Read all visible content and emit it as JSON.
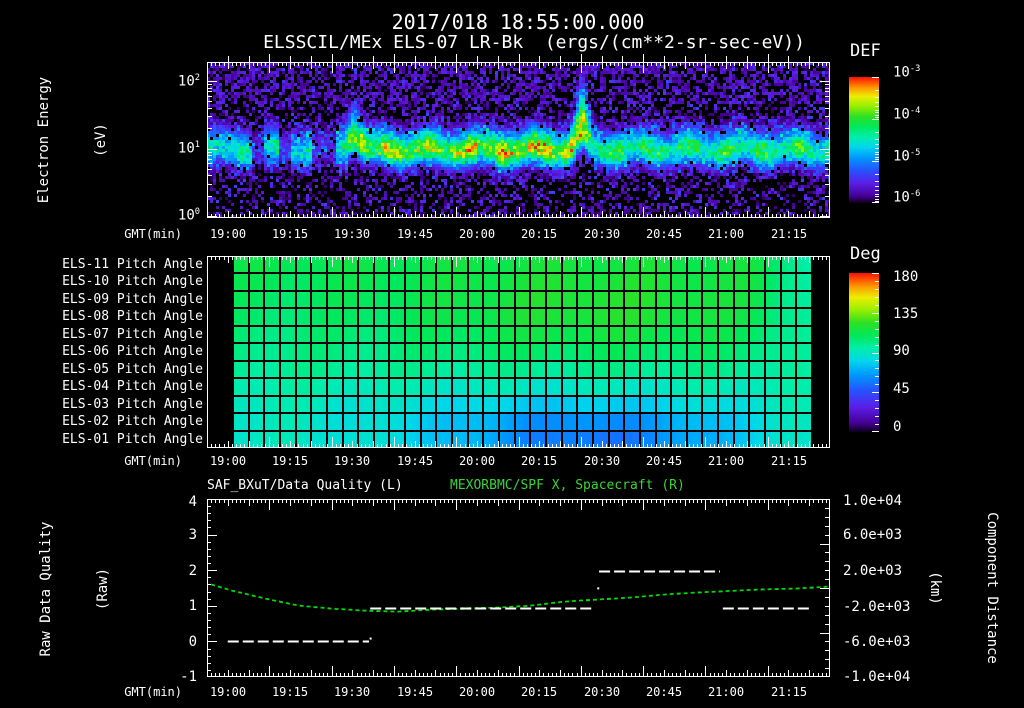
{
  "header": {
    "datetime": "2017/018 18:55:00.000",
    "instrument_title": "ELSSCIL/MEx ELS-07 LR-Bk  (ergs/(cm**2-sr-sec-eV))"
  },
  "time_axis": {
    "label": "GMT(min)",
    "start": "18:55",
    "end": "21:25",
    "range_min": 150,
    "first_tick_offset_min": 5,
    "tick_interval_min": 15,
    "ticks": [
      "19:00",
      "19:15",
      "19:30",
      "19:45",
      "20:00",
      "20:15",
      "20:30",
      "20:45",
      "21:00",
      "21:15"
    ]
  },
  "spectrogram": {
    "ylabel": "Electron Energy",
    "ylabel_units": "(eV)",
    "ytick_base": "10",
    "ytick_exponents": [
      "2",
      "1",
      "0"
    ],
    "colorbar": {
      "title": "DEF",
      "tick_base": "10",
      "tick_exponents": [
        "-3",
        "-4",
        "-5",
        "-6"
      ]
    }
  },
  "pitch": {
    "row_labels": [
      "ELS-11 Pitch Angle",
      "ELS-10 Pitch Angle",
      "ELS-09 Pitch Angle",
      "ELS-08 Pitch Angle",
      "ELS-07 Pitch Angle",
      "ELS-06 Pitch Angle",
      "ELS-05 Pitch Angle",
      "ELS-04 Pitch Angle",
      "ELS-03 Pitch Angle",
      "ELS-02 Pitch Angle",
      "ELS-01 Pitch Angle"
    ],
    "colorbar": {
      "title": "Deg",
      "ticks": [
        "180",
        "135",
        "90",
        "45",
        "0"
      ]
    }
  },
  "bottom": {
    "title_left": "SAF_BXuT/Data Quality (L)",
    "title_right": "MEXORBMC/SPF X, Spacecraft (R)",
    "ylabel": "Raw Data Quality",
    "ylabel2": "(Raw)",
    "yticks": [
      "4",
      "3",
      "2",
      "1",
      "0",
      "-1"
    ],
    "right_label": "Component Distance",
    "right_label2": "(km)",
    "right_ticks": [
      "1.0e+04",
      "6.0e+03",
      "2.0e+03",
      "-2.0e+03",
      "-6.0e+03",
      "-1.0e+04"
    ]
  },
  "colors": {
    "background": "#000000",
    "text": "#ffffff",
    "accent_green": "#3cd23c",
    "curve_green": "#00dc00"
  },
  "chart_data": [
    {
      "type": "heatmap",
      "name": "electron_energy_spectrogram",
      "title": "ELSSCIL/MEx ELS-07 LR-Bk",
      "units": "ergs/(cm**2-sr-sec-eV)",
      "x_axis": {
        "label": "GMT(min)",
        "start": "18:55",
        "end": "21:25",
        "ticks": [
          "19:00",
          "19:15",
          "19:30",
          "19:45",
          "20:00",
          "20:15",
          "20:30",
          "20:45",
          "21:00",
          "21:15"
        ]
      },
      "y_axis": {
        "label": "Electron Energy (eV)",
        "scale": "log",
        "min": 1,
        "max": 200,
        "ticks": [
          100,
          10,
          1
        ]
      },
      "colorbar": {
        "title": "DEF",
        "scale": "log",
        "min": 1e-06,
        "max": 0.001
      },
      "features": {
        "main_band_center_eV": 10,
        "band_extent_eV": [
          4,
          30
        ],
        "enhancements_gmt": [
          "19:30",
          "20:25"
        ],
        "gaps_min": [
          [
            10.5,
            13.5
          ],
          [
            17.5,
            20.5
          ],
          [
            25,
            31
          ]
        ],
        "peak1_min": 35.3,
        "peak2_min": 90.3,
        "bright_min": [
          63,
          88
        ]
      }
    },
    {
      "type": "heatmap",
      "name": "pitch_angle_panels",
      "rows": [
        "ELS-11 Pitch Angle",
        "ELS-10 Pitch Angle",
        "ELS-09 Pitch Angle",
        "ELS-08 Pitch Angle",
        "ELS-07 Pitch Angle",
        "ELS-06 Pitch Angle",
        "ELS-05 Pitch Angle",
        "ELS-04 Pitch Angle",
        "ELS-03 Pitch Angle",
        "ELS-02 Pitch Angle",
        "ELS-01 Pitch Angle"
      ],
      "x_axis": {
        "label": "GMT(min)",
        "data_start": "19:01",
        "data_end": "21:21"
      },
      "colorbar": {
        "title": "Deg",
        "min": 0,
        "max": 180,
        "ticks": [
          180,
          135,
          90,
          45,
          0
        ]
      },
      "features": {
        "base_top_deg": 113,
        "base_bottom_deg": 91,
        "patches": [
          {
            "u": 0.64,
            "v": 0.3,
            "su": 0.3,
            "sv": 0.24,
            "amp": 14
          },
          {
            "u": 0.62,
            "v": 0.95,
            "su": 0.26,
            "sv": 0.15,
            "amp": -30
          },
          {
            "u": 0.55,
            "v": 0.8,
            "su": 0.45,
            "sv": 0.18,
            "amp": -12
          }
        ],
        "right_blend_deg": 92
      }
    },
    {
      "type": "line",
      "name": "quality_and_position",
      "title_left": "SAF_BXuT/Data Quality (L)",
      "title_right": "MEXORBMC/SPF X, Spacecraft (R)",
      "x_axis": {
        "label": "GMT(min)",
        "start": "18:55",
        "end": "21:25",
        "range_min": 150
      },
      "left_axis": {
        "label": "Raw Data Quality (Raw)",
        "min": -1,
        "max": 4
      },
      "right_axis": {
        "label": "Component Distance (km)",
        "min": -10000,
        "max": 10000
      },
      "series": [
        {
          "name": "SAF_BXuT/Data Quality",
          "axis": "left",
          "color": "#ffffff",
          "style": "dashed_steps",
          "segments": [
            {
              "start_gmt": "19:00",
              "end_gmt": "19:34",
              "start_min": 5,
              "end_min": 39,
              "value": 0
            },
            {
              "start_gmt": "19:34",
              "end_gmt": "20:28",
              "start_min": 39.3,
              "end_min": 93,
              "value": 0.93
            },
            {
              "start_gmt": "20:29",
              "end_gmt": "20:58",
              "start_min": 94.4,
              "end_min": 123.5,
              "value": 1.97
            },
            {
              "start_gmt": "20:59",
              "end_gmt": "21:20",
              "start_min": 124.2,
              "end_min": 145,
              "value": 0.95
            }
          ],
          "isolated_points": [
            {
              "gmt": "19:34",
              "min": 39.4,
              "value": 0.08
            },
            {
              "gmt": "20:29",
              "min": 94.2,
              "value": 1.49
            }
          ]
        },
        {
          "name": "MEXORBMC/SPF X",
          "axis": "right",
          "color": "#00dc00",
          "style": "dashed",
          "points_min_km": [
            [
              1,
              395
            ],
            [
              6,
              -283
            ],
            [
              14,
              -1187
            ],
            [
              22,
              -1978
            ],
            [
              30,
              -2317
            ],
            [
              38,
              -2543
            ],
            [
              46,
              -2656
            ],
            [
              54,
              -2430
            ],
            [
              62,
              -2317
            ],
            [
              70,
              -2204
            ],
            [
              78,
              -1978
            ],
            [
              86,
              -1526
            ],
            [
              94,
              -1300
            ],
            [
              102,
              -1074
            ],
            [
              110,
              -735
            ],
            [
              118,
              -509
            ],
            [
              123,
              -396
            ],
            [
              133,
              -170
            ],
            [
              142,
              -57
            ],
            [
              150,
              169
            ]
          ]
        }
      ]
    }
  ]
}
